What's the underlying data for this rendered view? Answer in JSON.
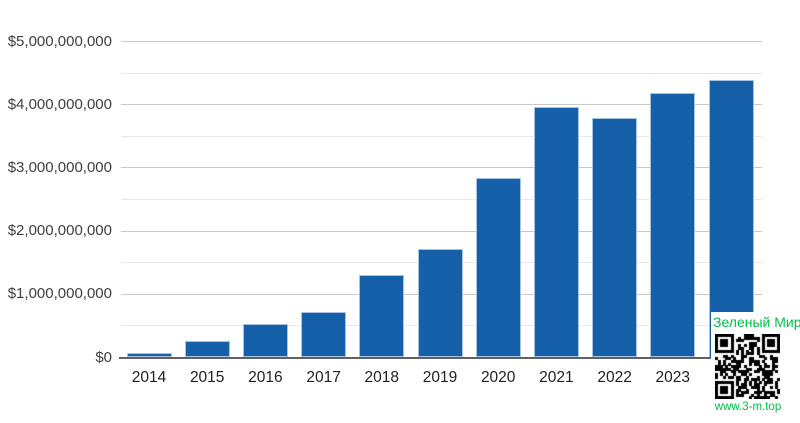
{
  "watermark": {
    "brand": "Зеленый Мир",
    "url": "www.3-m.top",
    "accent_color": "#00c24a",
    "qr_icon": "qr-code"
  },
  "chart_data": {
    "type": "bar",
    "title": "",
    "xlabel": "",
    "ylabel": "",
    "categories": [
      "2014",
      "2015",
      "2016",
      "2017",
      "2018",
      "2019",
      "2020",
      "2021",
      "2022",
      "2023",
      ""
    ],
    "values": [
      75000000,
      255000000,
      535000000,
      720000000,
      1300000000,
      1720000000,
      2840000000,
      3960000000,
      3790000000,
      4190000000,
      4400000000
    ],
    "ylim": [
      0,
      5500000000
    ],
    "y_major_tick_step": 1000000000,
    "y_minor_tick_step": 500000000,
    "y_tick_labels": [
      "$0",
      "$1,000,000,000",
      "$2,000,000,000",
      "$3,000,000,000",
      "$4,000,000,000",
      "$5,000,000,000"
    ],
    "grid": "on",
    "legend": "none",
    "colors": {
      "bar": "#1560a9",
      "bar_edge": "#a6c3e2",
      "axis_line": "#616161",
      "major_grid": "#c9c9c9",
      "minor_grid": "#e8e8e8",
      "y_tick_text": "#404040",
      "x_tick_text": "#212121",
      "background": "#ffffff"
    }
  }
}
